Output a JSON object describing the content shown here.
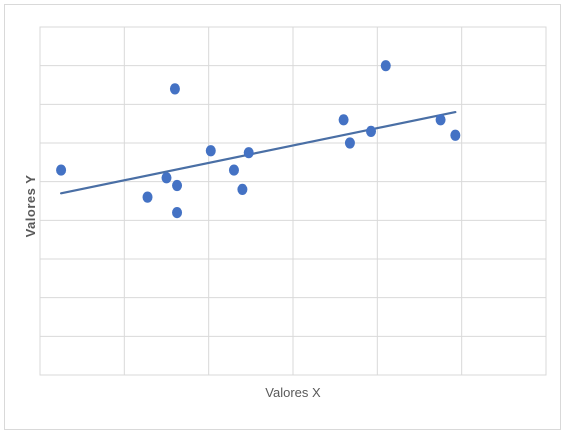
{
  "chart_data": {
    "type": "scatter",
    "title": "",
    "xlabel": "Valores X",
    "ylabel": "Valores Y",
    "xlim": [
      0,
      12
    ],
    "ylim": [
      0,
      9
    ],
    "x_gridlines": [
      0,
      2,
      4,
      6,
      8,
      10,
      12
    ],
    "y_gridlines": [
      1,
      2,
      3,
      4,
      5,
      6,
      7,
      8
    ],
    "grid": true,
    "legend": "none",
    "series": [
      {
        "points": [
          {
            "x": 0.5,
            "y": 5.3
          },
          {
            "x": 2.55,
            "y": 4.6
          },
          {
            "x": 3.0,
            "y": 5.1
          },
          {
            "x": 3.2,
            "y": 7.4
          },
          {
            "x": 3.25,
            "y": 4.9
          },
          {
            "x": 3.25,
            "y": 4.2
          },
          {
            "x": 4.05,
            "y": 5.8
          },
          {
            "x": 4.6,
            "y": 5.3
          },
          {
            "x": 4.8,
            "y": 4.8
          },
          {
            "x": 4.95,
            "y": 5.75
          },
          {
            "x": 7.2,
            "y": 6.6
          },
          {
            "x": 7.35,
            "y": 6.0
          },
          {
            "x": 7.85,
            "y": 6.3
          },
          {
            "x": 8.2,
            "y": 8.0
          },
          {
            "x": 9.5,
            "y": 6.6
          },
          {
            "x": 9.85,
            "y": 6.2
          }
        ],
        "trendline": {
          "type": "linear",
          "start": {
            "x": 0.5,
            "y": 4.7
          },
          "end": {
            "x": 9.85,
            "y": 6.8
          }
        }
      }
    ],
    "colors": {
      "marker": "#4472c4",
      "trendline": "#4a6fa5",
      "grid": "#d9d9d9",
      "label": "#595959"
    }
  }
}
